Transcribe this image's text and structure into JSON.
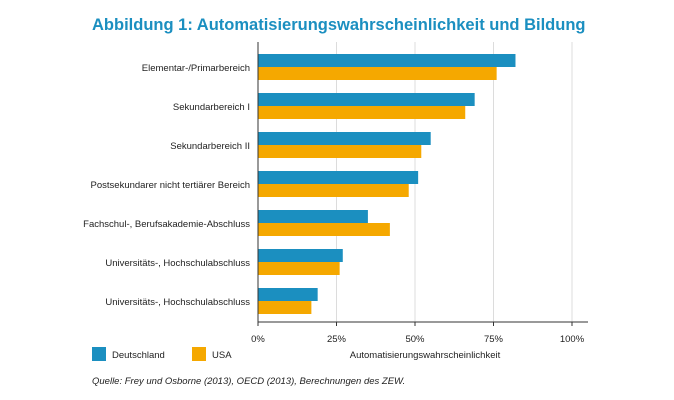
{
  "title": "Abbildung 1: Automatisierungswahrscheinlichkeit und Bildung",
  "source": "Quelle: Frey und Osborne (2013), OECD (2013), Berechnungen des ZEW.",
  "chart_data": {
    "type": "bar",
    "orientation": "horizontal",
    "categories": [
      "Elementar-/Primarbereich",
      "Sekundarbereich I",
      "Sekundarbereich II",
      "Postsekundarer nicht tertiärer Bereich",
      "Fachschul-, Berufsakademie-Abschluss",
      "Universitäts-, Hochschulabschluss",
      "Universitäts-, Hochschulabschluss"
    ],
    "series": [
      {
        "name": "Deutschland",
        "color": "#1b8fc0",
        "values": [
          82,
          69,
          55,
          51,
          35,
          27,
          19
        ]
      },
      {
        "name": "USA",
        "color": "#f5a800",
        "values": [
          76,
          66,
          52,
          48,
          42,
          26,
          17
        ]
      }
    ],
    "xlabel": "Automatisierungswahrscheinlichkeit",
    "xlim": [
      0,
      100
    ],
    "xticks": [
      "0%",
      "25%",
      "50%",
      "75%",
      "100%"
    ],
    "grid": "vertical",
    "legend": "bottom-left"
  }
}
